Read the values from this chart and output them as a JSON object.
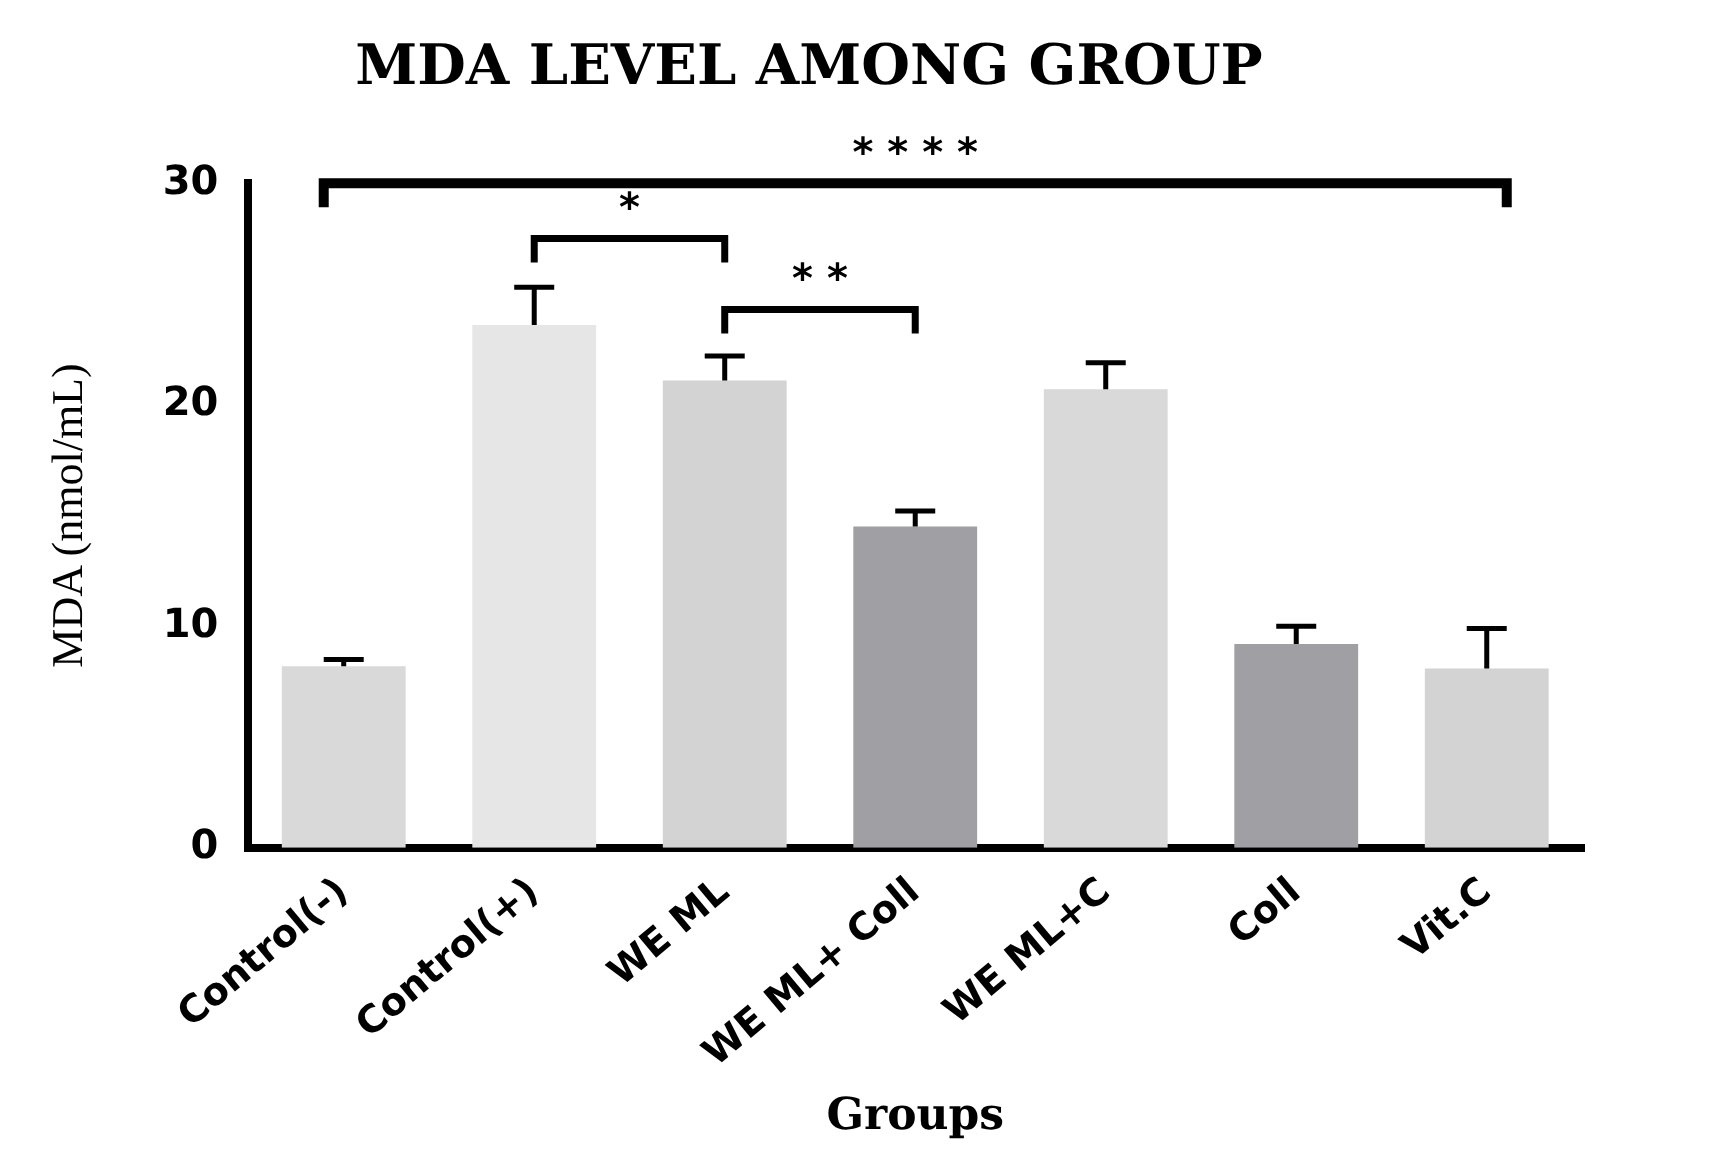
{
  "chart_data": {
    "type": "bar",
    "title": "MDA LEVEL AMONG GROUP",
    "xlabel": "Groups",
    "ylabel": "MDA (nmol/mL)",
    "categories": [
      "Control(-)",
      "Control(+)",
      "WE ML",
      "WE ML+ Coll",
      "WE ML+C",
      "Coll",
      "Vit.C"
    ],
    "values": [
      8.2,
      23.6,
      21.1,
      14.5,
      20.7,
      9.2,
      8.1
    ],
    "errors": [
      0.3,
      1.7,
      1.1,
      0.7,
      1.2,
      0.8,
      1.8
    ],
    "colors": [
      "#d9d9d9",
      "#e6e6e6",
      "#d3d3d3",
      "#a0a0a4",
      "#d9d9d9",
      "#a0a0a4",
      "#d3d3d3"
    ],
    "ylim": [
      0,
      30
    ],
    "yticks": [
      0,
      10,
      20,
      30
    ],
    "grid": false,
    "legend": false,
    "annotations": [
      "* * * *",
      "*",
      "* *"
    ]
  }
}
